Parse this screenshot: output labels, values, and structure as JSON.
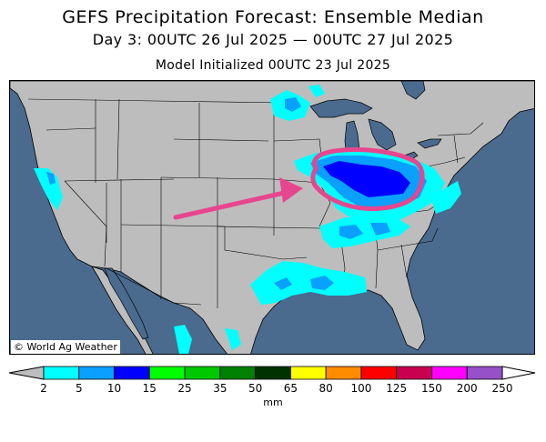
{
  "header": {
    "title": "GEFS Precipitation Forecast: Ensemble Median",
    "period": "Day 3: 00UTC 26 Jul 2025 — 00UTC 27 Jul 2025",
    "init": "Model Initialized 00UTC 23 Jul 2025"
  },
  "map": {
    "credit": "© World Ag Weather",
    "colors": {
      "ocean": "#4a6a8e",
      "land": "#bdbdbd",
      "highlight_circle": "#e8458f",
      "arrow": "#e8458f"
    },
    "precip_colors": {
      "2-5": "#00ffff",
      "5-10": "#0aa0ff",
      "10-15": "#0000ff"
    }
  },
  "legend": {
    "unit": "mm",
    "ticks": [
      "2",
      "5",
      "10",
      "15",
      "25",
      "35",
      "50",
      "65",
      "80",
      "100",
      "125",
      "150",
      "200",
      "250"
    ],
    "colors": [
      "#00ffff",
      "#0aa0ff",
      "#0000ff",
      "#00ff00",
      "#00c800",
      "#008000",
      "#003200",
      "#ffff00",
      "#ff8c00",
      "#ff0000",
      "#c80050",
      "#ff00ff",
      "#9650c8"
    ]
  }
}
